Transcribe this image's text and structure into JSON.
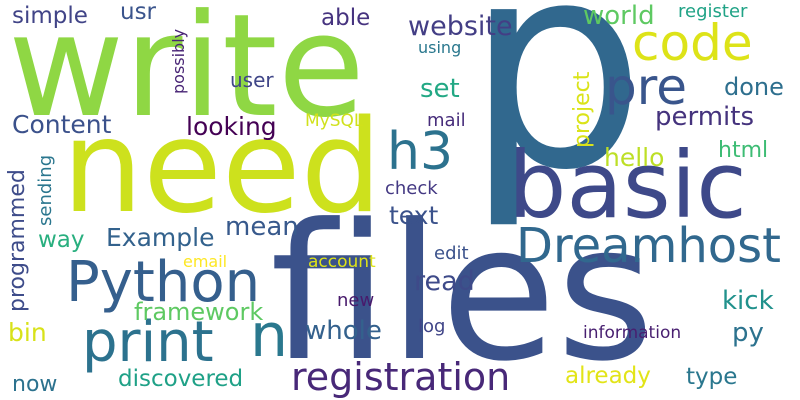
{
  "word_cloud": {
    "words": [
      {
        "text": "p",
        "color": "#31688e"
      },
      {
        "text": "files",
        "color": "#3b528b"
      },
      {
        "text": "write",
        "color": "#8fd744"
      },
      {
        "text": "need",
        "color": "#cde11d"
      },
      {
        "text": "basic",
        "color": "#3e4989"
      },
      {
        "text": "code",
        "color": "#dde318"
      },
      {
        "text": "Dreamhost",
        "color": "#31688e"
      },
      {
        "text": "Python",
        "color": "#355f8d"
      },
      {
        "text": "print",
        "color": "#2c728e"
      },
      {
        "text": "registration",
        "color": "#482878"
      },
      {
        "text": "pre",
        "color": "#39558c"
      },
      {
        "text": "h3",
        "color": "#2c728e"
      },
      {
        "text": "n",
        "color": "#2a788e"
      },
      {
        "text": "simple",
        "color": "#414487"
      },
      {
        "text": "usr",
        "color": "#3a548c"
      },
      {
        "text": "able",
        "color": "#46337f"
      },
      {
        "text": "website",
        "color": "#433e85"
      },
      {
        "text": "world",
        "color": "#5ec962"
      },
      {
        "text": "register",
        "color": "#20a386"
      },
      {
        "text": "using",
        "color": "#2a788e"
      },
      {
        "text": "possibly",
        "color": "#482475"
      },
      {
        "text": "user",
        "color": "#404688"
      },
      {
        "text": "set",
        "color": "#22a884"
      },
      {
        "text": "done",
        "color": "#2e6f8e"
      },
      {
        "text": "project",
        "color": "#dae319"
      },
      {
        "text": "Content",
        "color": "#3b518b"
      },
      {
        "text": "looking",
        "color": "#440154"
      },
      {
        "text": "MySQL",
        "color": "#d0e11c"
      },
      {
        "text": "mail",
        "color": "#472d7b"
      },
      {
        "text": "permits",
        "color": "#45337d"
      },
      {
        "text": "hello",
        "color": "#bddf26"
      },
      {
        "text": "html",
        "color": "#3dbc74"
      },
      {
        "text": "programmed",
        "color": "#3e4c8a"
      },
      {
        "text": "sending",
        "color": "#2a768e"
      },
      {
        "text": "check",
        "color": "#443983"
      },
      {
        "text": "text",
        "color": "#3b528b"
      },
      {
        "text": "way",
        "color": "#29af7f"
      },
      {
        "text": "Example",
        "color": "#33628d"
      },
      {
        "text": "mean",
        "color": "#38598c"
      },
      {
        "text": "edit",
        "color": "#3b528b"
      },
      {
        "text": "email",
        "color": "#fde725"
      },
      {
        "text": "account",
        "color": "#dde318"
      },
      {
        "text": "read",
        "color": "#3e4a89"
      },
      {
        "text": "framework",
        "color": "#5ec962"
      },
      {
        "text": "kick",
        "color": "#21918c"
      },
      {
        "text": "bin",
        "color": "#d8e219"
      },
      {
        "text": "new",
        "color": "#481a6c"
      },
      {
        "text": "whole",
        "color": "#34618d"
      },
      {
        "text": "py",
        "color": "#2c728e"
      },
      {
        "text": "log",
        "color": "#404588"
      },
      {
        "text": "information",
        "color": "#481f70"
      },
      {
        "text": "now",
        "color": "#2c728e"
      },
      {
        "text": "discovered",
        "color": "#1fa187"
      },
      {
        "text": "already",
        "color": "#e2e418"
      },
      {
        "text": "type",
        "color": "#2a778e"
      }
    ]
  }
}
